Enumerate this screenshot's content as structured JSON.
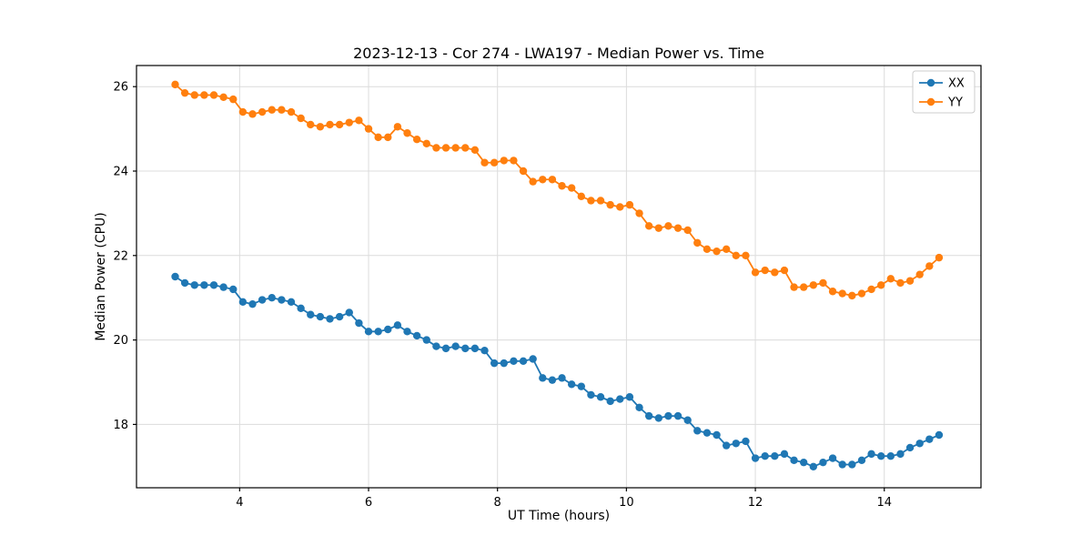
{
  "chart_data": {
    "type": "line",
    "title": "2023-12-13 - Cor 274 - LWA197 - Median Power vs. Time",
    "xlabel": "UT Time (hours)",
    "ylabel": "Median Power (CPU)",
    "xlim": [
      2.4,
      15.5
    ],
    "ylim": [
      16.5,
      26.5
    ],
    "xticks": [
      4,
      6,
      8,
      10,
      12,
      14
    ],
    "yticks": [
      18,
      20,
      22,
      24,
      26
    ],
    "grid": true,
    "legend_position": "upper right",
    "style": {
      "grid_color": "#dcdcdc",
      "axis_color": "#000000",
      "legend_edge_color": "#cccccc",
      "background": "#ffffff"
    },
    "x": [
      3.0,
      3.15,
      3.3,
      3.45,
      3.6,
      3.75,
      3.9,
      4.05,
      4.2,
      4.35,
      4.5,
      4.65,
      4.8,
      4.95,
      5.1,
      5.25,
      5.4,
      5.55,
      5.7,
      5.85,
      6.0,
      6.15,
      6.3,
      6.45,
      6.6,
      6.75,
      6.9,
      7.05,
      7.2,
      7.35,
      7.5,
      7.65,
      7.8,
      7.95,
      8.1,
      8.25,
      8.4,
      8.55,
      8.7,
      8.85,
      9.0,
      9.15,
      9.3,
      9.45,
      9.6,
      9.75,
      9.9,
      10.05,
      10.2,
      10.35,
      10.5,
      10.65,
      10.8,
      10.95,
      11.1,
      11.25,
      11.4,
      11.55,
      11.7,
      11.85,
      12.0,
      12.15,
      12.3,
      12.45,
      12.6,
      12.75,
      12.9,
      13.05,
      13.2,
      13.35,
      13.5,
      13.65,
      13.8,
      13.95,
      14.1,
      14.25,
      14.4,
      14.55,
      14.7,
      14.85
    ],
    "series": [
      {
        "name": "XX",
        "color": "#1f77b4",
        "values": [
          21.5,
          21.35,
          21.3,
          21.3,
          21.3,
          21.25,
          21.2,
          20.9,
          20.85,
          20.95,
          21.0,
          20.95,
          20.9,
          20.75,
          20.6,
          20.55,
          20.5,
          20.55,
          20.65,
          20.4,
          20.2,
          20.2,
          20.25,
          20.35,
          20.2,
          20.1,
          20.0,
          19.85,
          19.8,
          19.85,
          19.8,
          19.8,
          19.75,
          19.45,
          19.45,
          19.5,
          19.5,
          19.55,
          19.1,
          19.05,
          19.1,
          18.95,
          18.9,
          18.7,
          18.65,
          18.55,
          18.6,
          18.65,
          18.4,
          18.2,
          18.15,
          18.2,
          18.2,
          18.1,
          17.85,
          17.8,
          17.75,
          17.5,
          17.55,
          17.6,
          17.2,
          17.25,
          17.25,
          17.3,
          17.15,
          17.1,
          17.0,
          17.1,
          17.2,
          17.05,
          17.05,
          17.15,
          17.3,
          17.25,
          17.25,
          17.3,
          17.45,
          17.55,
          17.65,
          17.75
        ]
      },
      {
        "name": "YY",
        "color": "#ff7f0e",
        "values": [
          26.05,
          25.85,
          25.8,
          25.8,
          25.8,
          25.75,
          25.7,
          25.4,
          25.35,
          25.4,
          25.45,
          25.45,
          25.4,
          25.25,
          25.1,
          25.05,
          25.1,
          25.1,
          25.15,
          25.2,
          25.0,
          24.8,
          24.8,
          25.05,
          24.9,
          24.75,
          24.65,
          24.55,
          24.55,
          24.55,
          24.55,
          24.5,
          24.2,
          24.2,
          24.25,
          24.25,
          24.0,
          23.75,
          23.8,
          23.8,
          23.65,
          23.6,
          23.4,
          23.3,
          23.3,
          23.2,
          23.15,
          23.2,
          23.0,
          22.7,
          22.65,
          22.7,
          22.65,
          22.6,
          22.3,
          22.15,
          22.1,
          22.15,
          22.0,
          22.0,
          21.6,
          21.65,
          21.6,
          21.65,
          21.25,
          21.25,
          21.3,
          21.35,
          21.15,
          21.1,
          21.05,
          21.1,
          21.2,
          21.3,
          21.45,
          21.35,
          21.4,
          21.55,
          21.75,
          21.95
        ]
      }
    ]
  }
}
